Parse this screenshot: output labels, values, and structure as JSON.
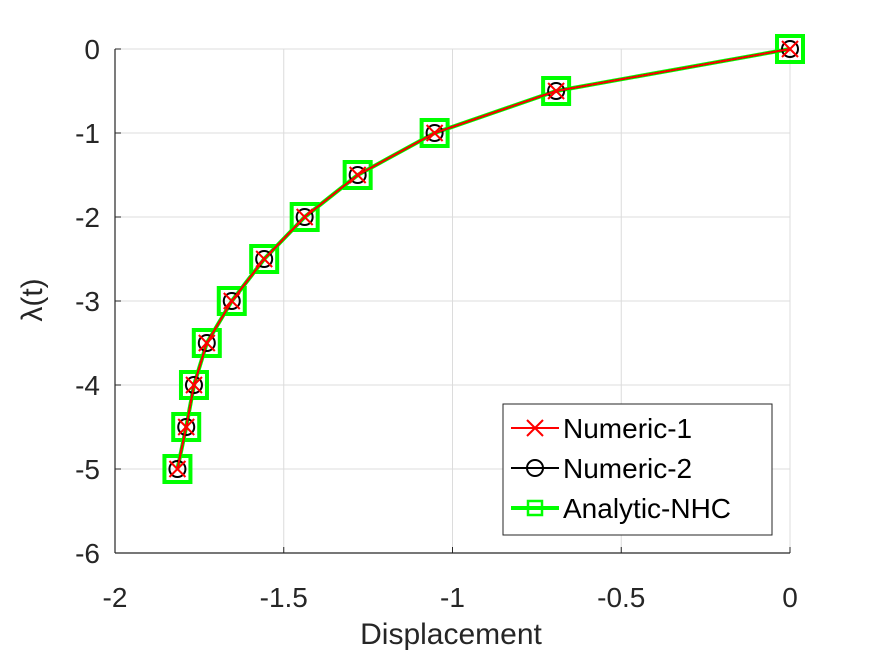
{
  "chart_data": {
    "type": "line",
    "title": "",
    "xlabel": "Displacement",
    "ylabel": "λ(t)",
    "xlim": [
      -2,
      0
    ],
    "ylim": [
      -6,
      0
    ],
    "xticks": [
      -2,
      -1.5,
      -1,
      -0.5,
      0
    ],
    "xtick_labels": [
      "-2",
      "-1.5",
      "-1",
      "-0.5",
      "0"
    ],
    "yticks": [
      0,
      -1,
      -2,
      -3,
      -4,
      -5,
      -6
    ],
    "ytick_labels": [
      "0",
      "-1",
      "-2",
      "-3",
      "-4",
      "-5",
      "-6"
    ],
    "grid": true,
    "legend_position": "bottom-right",
    "x": [
      0,
      -0.693,
      -1.053,
      -1.281,
      -1.438,
      -1.558,
      -1.654,
      -1.728,
      -1.766,
      -1.789,
      -1.815
    ],
    "y": [
      0,
      -0.5,
      -1,
      -1.5,
      -2,
      -2.5,
      -3,
      -3.5,
      -4,
      -4.5,
      -5
    ],
    "series": [
      {
        "name": "Numeric-1",
        "color": "#ff0000",
        "marker": "x"
      },
      {
        "name": "Numeric-2",
        "color": "#000000",
        "marker": "o"
      },
      {
        "name": "Analytic-NHC",
        "color": "#00ff00",
        "marker": "square"
      }
    ]
  }
}
